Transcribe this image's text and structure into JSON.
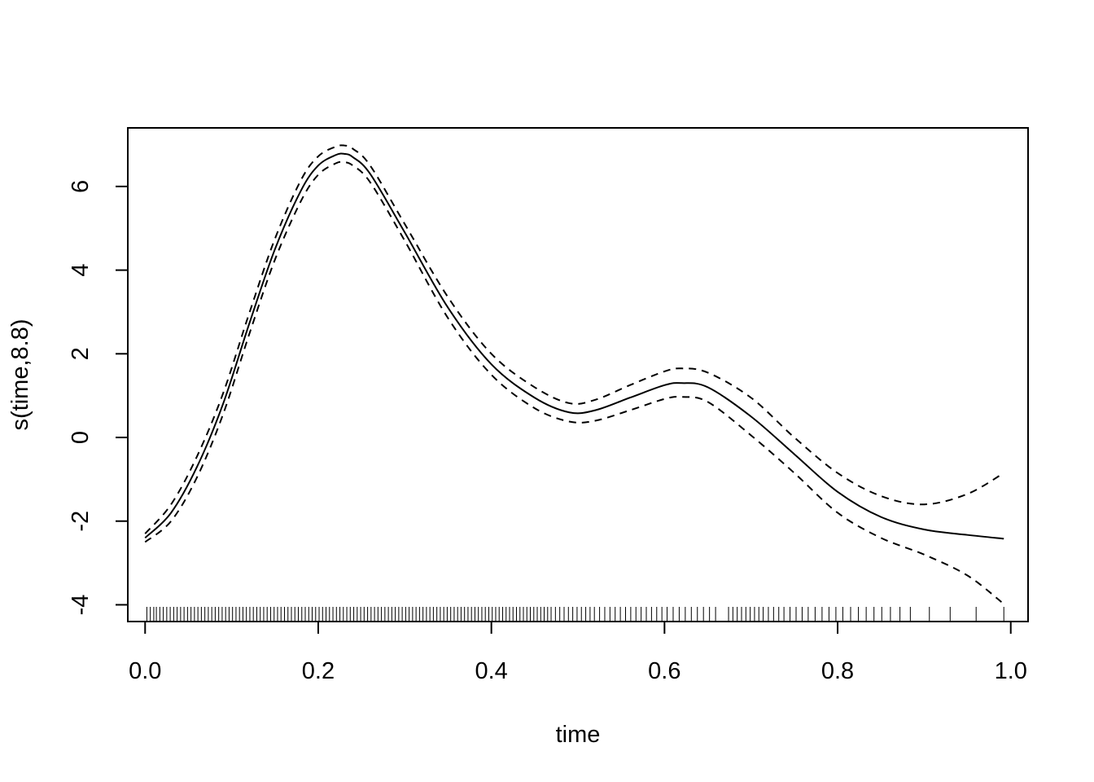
{
  "chart_data": {
    "type": "line",
    "title": "",
    "xlabel": "time",
    "ylabel": "s(time,8.8)",
    "xlim": [
      -0.02,
      1.02
    ],
    "ylim": [
      -4.4,
      7.4
    ],
    "x_ticks": [
      "0.0",
      "0.2",
      "0.4",
      "0.6",
      "0.8",
      "1.0"
    ],
    "x_tick_values": [
      0.0,
      0.2,
      0.4,
      0.6,
      0.8,
      1.0
    ],
    "y_ticks": [
      "-4",
      "-2",
      "0",
      "2",
      "4",
      "6"
    ],
    "y_tick_values": [
      -4,
      -2,
      0,
      2,
      4,
      6
    ],
    "grid": false,
    "legend": "none",
    "series": [
      {
        "style": "solid",
        "x": [
          0.0,
          0.03,
          0.06,
          0.09,
          0.12,
          0.15,
          0.18,
          0.2,
          0.22,
          0.23,
          0.24,
          0.26,
          0.3,
          0.35,
          0.4,
          0.45,
          0.49,
          0.52,
          0.56,
          0.6,
          0.62,
          0.65,
          0.7,
          0.75,
          0.8,
          0.85,
          0.9,
          0.95,
          0.992
        ],
        "y": [
          -2.4,
          -1.8,
          -0.7,
          0.8,
          2.7,
          4.5,
          5.9,
          6.5,
          6.75,
          6.78,
          6.7,
          6.3,
          4.9,
          3.1,
          1.75,
          0.95,
          0.6,
          0.65,
          0.95,
          1.25,
          1.3,
          1.2,
          0.5,
          -0.4,
          -1.3,
          -1.9,
          -2.2,
          -2.33,
          -2.42
        ]
      },
      {
        "style": "dashed",
        "x": [
          0.0,
          0.03,
          0.06,
          0.09,
          0.12,
          0.15,
          0.18,
          0.2,
          0.22,
          0.23,
          0.24,
          0.26,
          0.3,
          0.35,
          0.4,
          0.45,
          0.49,
          0.52,
          0.56,
          0.6,
          0.62,
          0.65,
          0.7,
          0.75,
          0.8,
          0.85,
          0.9,
          0.95,
          0.992
        ],
        "y": [
          -2.3,
          -1.6,
          -0.45,
          1.05,
          2.95,
          4.75,
          6.15,
          6.72,
          6.95,
          6.98,
          6.9,
          6.5,
          5.1,
          3.35,
          2.0,
          1.2,
          0.82,
          0.9,
          1.25,
          1.58,
          1.65,
          1.55,
          0.95,
          0.0,
          -0.85,
          -1.4,
          -1.6,
          -1.35,
          -0.85
        ]
      },
      {
        "style": "dashed",
        "x": [
          0.0,
          0.03,
          0.06,
          0.09,
          0.12,
          0.15,
          0.18,
          0.2,
          0.22,
          0.23,
          0.24,
          0.26,
          0.3,
          0.35,
          0.4,
          0.45,
          0.49,
          0.52,
          0.56,
          0.6,
          0.62,
          0.65,
          0.7,
          0.75,
          0.8,
          0.85,
          0.9,
          0.95,
          0.992
        ],
        "y": [
          -2.5,
          -2.0,
          -0.95,
          0.55,
          2.45,
          4.25,
          5.65,
          6.28,
          6.55,
          6.58,
          6.5,
          6.1,
          4.7,
          2.85,
          1.5,
          0.7,
          0.38,
          0.4,
          0.65,
          0.92,
          0.97,
          0.85,
          0.05,
          -0.85,
          -1.8,
          -2.4,
          -2.8,
          -3.3,
          -3.98
        ]
      }
    ],
    "rug": [
      0.002,
      0.006,
      0.01,
      0.013,
      0.017,
      0.021,
      0.025,
      0.029,
      0.033,
      0.037,
      0.041,
      0.045,
      0.049,
      0.053,
      0.057,
      0.061,
      0.065,
      0.069,
      0.073,
      0.077,
      0.081,
      0.085,
      0.089,
      0.093,
      0.097,
      0.101,
      0.105,
      0.109,
      0.113,
      0.117,
      0.121,
      0.125,
      0.129,
      0.133,
      0.137,
      0.141,
      0.145,
      0.149,
      0.153,
      0.157,
      0.161,
      0.165,
      0.169,
      0.173,
      0.177,
      0.181,
      0.185,
      0.189,
      0.193,
      0.197,
      0.201,
      0.205,
      0.209,
      0.213,
      0.217,
      0.221,
      0.225,
      0.229,
      0.233,
      0.237,
      0.241,
      0.245,
      0.249,
      0.253,
      0.257,
      0.261,
      0.265,
      0.269,
      0.273,
      0.277,
      0.281,
      0.285,
      0.289,
      0.293,
      0.297,
      0.301,
      0.305,
      0.309,
      0.313,
      0.317,
      0.321,
      0.325,
      0.329,
      0.333,
      0.337,
      0.341,
      0.345,
      0.349,
      0.353,
      0.357,
      0.361,
      0.365,
      0.369,
      0.373,
      0.377,
      0.381,
      0.385,
      0.389,
      0.393,
      0.397,
      0.401,
      0.405,
      0.409,
      0.413,
      0.417,
      0.421,
      0.425,
      0.429,
      0.433,
      0.437,
      0.441,
      0.445,
      0.449,
      0.453,
      0.457,
      0.461,
      0.465,
      0.469,
      0.474,
      0.479,
      0.484,
      0.489,
      0.494,
      0.499,
      0.504,
      0.509,
      0.514,
      0.519,
      0.525,
      0.531,
      0.537,
      0.543,
      0.549,
      0.555,
      0.561,
      0.567,
      0.573,
      0.579,
      0.585,
      0.591,
      0.597,
      0.603,
      0.61,
      0.617,
      0.624,
      0.631,
      0.638,
      0.645,
      0.652,
      0.659,
      0.674,
      0.679,
      0.684,
      0.689,
      0.694,
      0.699,
      0.704,
      0.709,
      0.714,
      0.72,
      0.726,
      0.732,
      0.738,
      0.745,
      0.752,
      0.759,
      0.766,
      0.774,
      0.782,
      0.79,
      0.798,
      0.806,
      0.815,
      0.824,
      0.833,
      0.842,
      0.851,
      0.861,
      0.872,
      0.884,
      0.906,
      0.93,
      0.96,
      0.992
    ]
  }
}
